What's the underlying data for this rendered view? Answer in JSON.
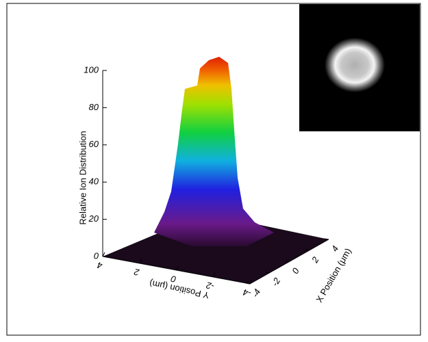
{
  "chart_data": {
    "type": "surface3d",
    "zlabel": "Relative Ion Distribution",
    "zlim": [
      0,
      100
    ],
    "zticks": [
      0,
      20,
      40,
      60,
      80,
      100
    ],
    "xlabel": "X Position (μm)",
    "xlim": [
      -4,
      4
    ],
    "xticks": [
      -4,
      -2,
      0,
      2,
      4
    ],
    "ylabel": "Y Position (μm)",
    "ylim": [
      4,
      -4
    ],
    "yticks": [
      4,
      2,
      0,
      -2,
      -4
    ]
  }
}
